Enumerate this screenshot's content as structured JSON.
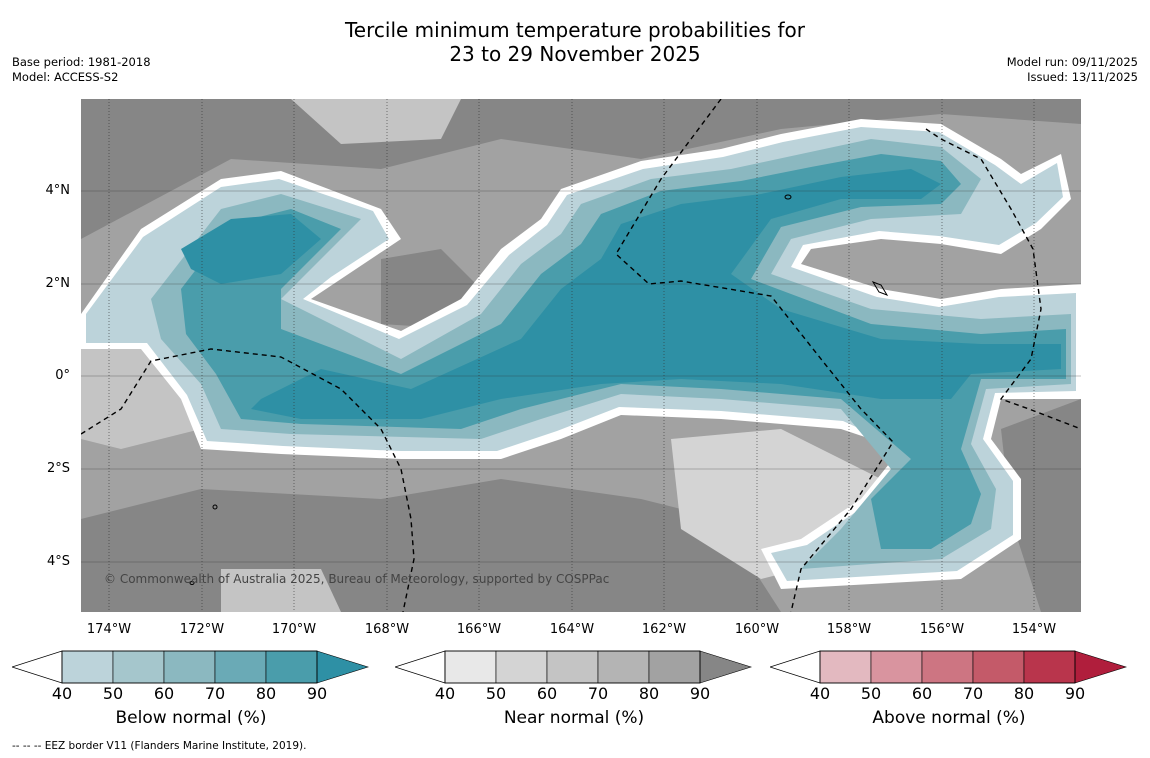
{
  "title_line1": "Tercile minimum temperature probabilities for",
  "title_line2": "23 to 29 November 2025",
  "base_period": "Base period: 1981-2018",
  "model": "Model: ACCESS-S2",
  "model_run": "Model run: 09/11/2025",
  "issued": "Issued: 13/11/2025",
  "copyright": "© Commonwealth of Australia 2025, Bureau of Meteorology, supported by COSPPac",
  "footnote": "--  --  -- EEZ border V11 (Flanders Marine Institute, 2019).",
  "lat_labels": [
    "4°N",
    "2°N",
    "0°",
    "2°S",
    "4°S"
  ],
  "lon_labels": [
    "174°W",
    "172°W",
    "170°W",
    "168°W",
    "166°W",
    "164°W",
    "162°W",
    "160°W",
    "158°W",
    "156°W",
    "154°W"
  ],
  "colorbars": [
    {
      "title": "Below normal (%)",
      "ticks": [
        "40",
        "50",
        "60",
        "70",
        "80",
        "90"
      ],
      "colors": [
        "#bcd3da",
        "#a5c6cc",
        "#8bb8c0",
        "#6aaab6",
        "#4a9dab",
        "#2e90a5"
      ]
    },
    {
      "title": "Near normal (%)",
      "ticks": [
        "40",
        "50",
        "60",
        "70",
        "80",
        "90"
      ],
      "colors": [
        "#e8e8e8",
        "#d4d4d4",
        "#c4c4c4",
        "#b4b4b4",
        "#a2a2a2",
        "#868686"
      ]
    },
    {
      "title": "Above normal (%)",
      "ticks": [
        "40",
        "50",
        "60",
        "70",
        "80",
        "90"
      ],
      "colors": [
        "#e3b9c0",
        "#d9949f",
        "#cd7582",
        "#c45a69",
        "#b9354c",
        "#b01e3c"
      ]
    }
  ],
  "colors": {
    "below_dark": "#2e90a5",
    "near_dark": "#868686",
    "above_dark": "#b01e3c"
  }
}
